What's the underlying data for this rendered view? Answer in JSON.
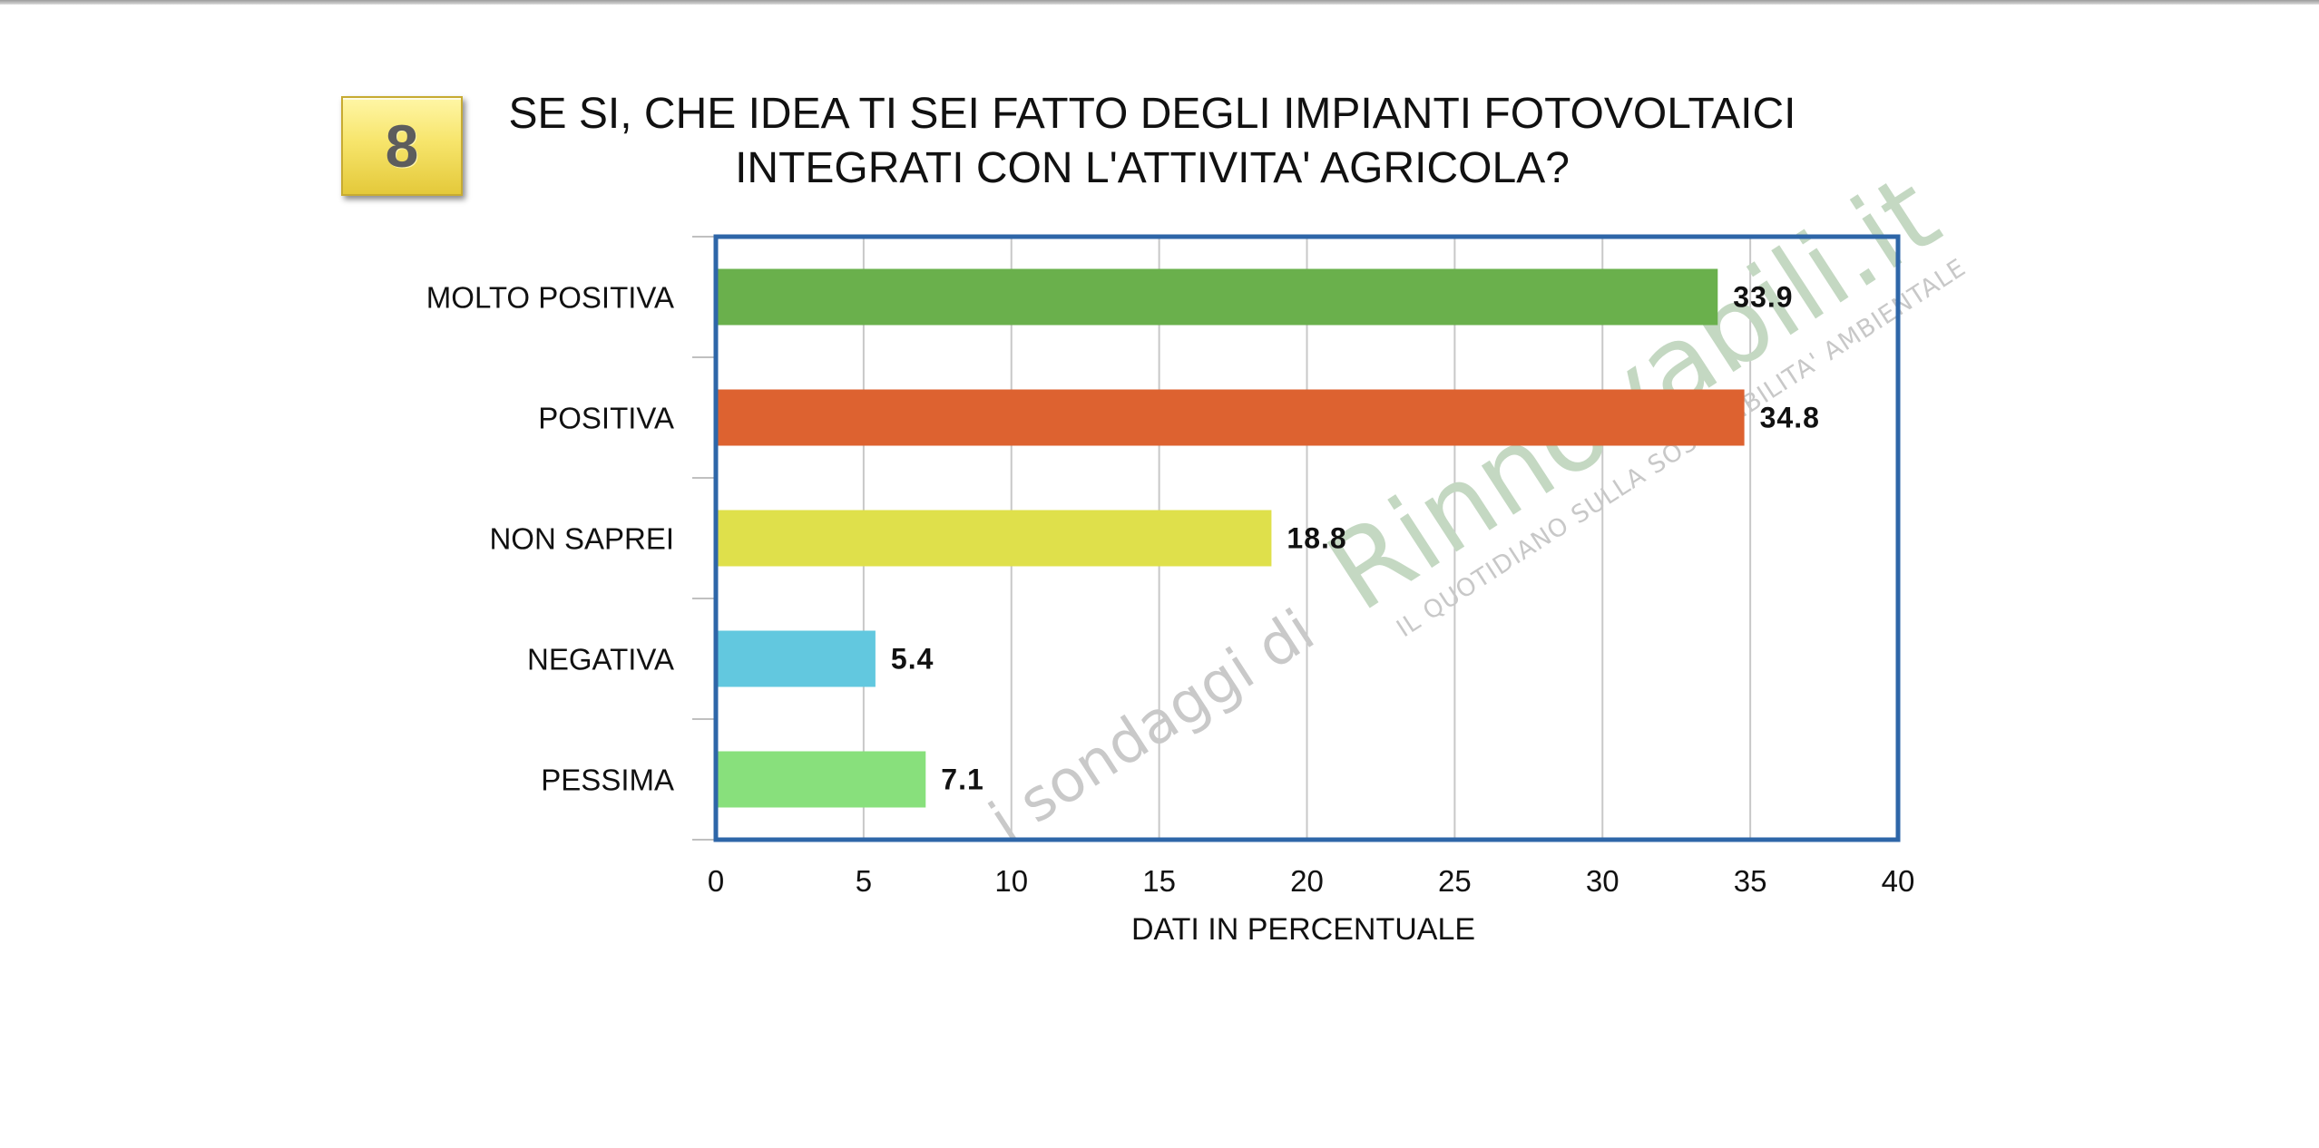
{
  "badge": {
    "number": "8"
  },
  "title": {
    "line1": "SE SI, CHE IDEA TI SEI FATTO DEGLI IMPIANTI FOTOVOLTAICI",
    "line2": "INTEGRATI CON L'ATTIVITA' AGRICOLA?"
  },
  "watermark": {
    "prefix": "i sondaggi di",
    "brand": "Rinnovabili.it",
    "tagline": "IL QUOTIDIANO SULLA SOSTENIBILITA' AMBIENTALE"
  },
  "chart_data": {
    "type": "bar",
    "orientation": "horizontal",
    "categories": [
      "MOLTO POSITIVA",
      "POSITIVA",
      "NON SAPREI",
      "NEGATIVA",
      "PESSIMA"
    ],
    "values": [
      33.9,
      34.8,
      18.8,
      5.4,
      7.1
    ],
    "value_labels": [
      "33.9",
      "34.8",
      "18.8",
      "5.4",
      "7.1"
    ],
    "colors": [
      "#6ab04c",
      "#dd6230",
      "#dfe04b",
      "#62c8df",
      "#88e07c"
    ],
    "xlabel": "DATI IN PERCENTUALE",
    "ylabel": "",
    "xlim": [
      0,
      40
    ],
    "xticks": [
      0,
      5,
      10,
      15,
      20,
      25,
      30,
      35,
      40
    ],
    "grid": true,
    "legend": "none",
    "frame_color": "#2e66a8",
    "grid_color": "#c8c8c8"
  }
}
